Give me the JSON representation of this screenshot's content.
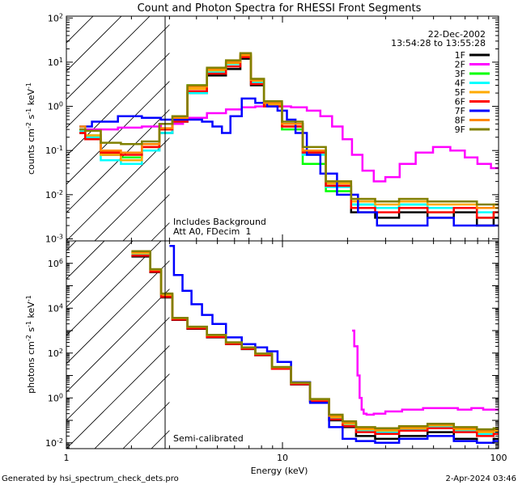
{
  "chart_data": [
    {
      "type": "line",
      "title": "Count and Photon Spectra for RHESSI Front Segments",
      "xlabel": "Energy (keV)",
      "ylabel": "counts cm-2 s-1 keV-1",
      "xscale": "log",
      "yscale": "log",
      "xlim": [
        1,
        100
      ],
      "ylim": [
        0.0009,
        110
      ],
      "yticks": [
        {
          "value": 0.001,
          "mant": "10",
          "exp": "-3"
        },
        {
          "value": 0.01,
          "mant": "10",
          "exp": "-2"
        },
        {
          "value": 0.1,
          "mant": "10",
          "exp": "-1"
        },
        {
          "value": 1,
          "mant": "10",
          "exp": "0"
        },
        {
          "value": 10,
          "mant": "10",
          "exp": "1"
        },
        {
          "value": 100,
          "mant": "10",
          "exp": "2"
        }
      ],
      "shaded_region_keV": [
        1,
        3
      ],
      "annotations": {
        "date": "22-Dec-2002",
        "time_range": "13:54:28 to 13:55:28",
        "note1": "Includes Background",
        "note2": "Att A0, FDecim  1"
      },
      "series": [
        {
          "name": "1F",
          "color": "#000000",
          "x": [
            1.15,
            1.3,
            1.6,
            2.0,
            2.5,
            2.9,
            3.3,
            4.0,
            5.0,
            6.0,
            6.8,
            7.5,
            9.0,
            11,
            14,
            18,
            24,
            30,
            40,
            55,
            70,
            90,
            100
          ],
          "y": [
            0.25,
            0.2,
            0.08,
            0.07,
            0.1,
            0.25,
            0.45,
            2.0,
            5.0,
            7.0,
            12,
            3.0,
            1.0,
            0.4,
            0.1,
            0.015,
            0.004,
            0.003,
            0.004,
            0.003,
            0.004,
            0.002,
            0.003
          ]
        },
        {
          "name": "2F",
          "color": "#ff00ff",
          "x": [
            1.15,
            1.5,
            2.0,
            2.5,
            3.0,
            4.0,
            5.0,
            6.0,
            7.0,
            8.0,
            10,
            12,
            14,
            16,
            18,
            20,
            22,
            25,
            28,
            32,
            38,
            45,
            55,
            65,
            75,
            85,
            100
          ],
          "y": [
            0.3,
            0.3,
            0.33,
            0.35,
            0.4,
            0.55,
            0.7,
            0.85,
            0.95,
            1.0,
            1.0,
            0.95,
            0.8,
            0.6,
            0.35,
            0.18,
            0.08,
            0.035,
            0.02,
            0.025,
            0.05,
            0.09,
            0.12,
            0.1,
            0.07,
            0.05,
            0.04
          ]
        },
        {
          "name": "3F",
          "color": "#00ff00",
          "x": [
            1.15,
            1.3,
            1.6,
            2.0,
            2.5,
            2.9,
            3.3,
            4.0,
            5.0,
            6.0,
            6.8,
            7.5,
            9.0,
            11,
            14,
            18,
            24,
            30,
            40,
            55,
            70,
            90,
            100
          ],
          "y": [
            0.3,
            0.22,
            0.09,
            0.07,
            0.12,
            0.3,
            0.5,
            3.0,
            7.0,
            10.0,
            14,
            4.0,
            1.0,
            0.3,
            0.05,
            0.012,
            0.006,
            0.005,
            0.006,
            0.004,
            0.005,
            0.003,
            0.004
          ]
        },
        {
          "name": "4F",
          "color": "#00ffff",
          "x": [
            1.15,
            1.3,
            1.6,
            2.0,
            2.5,
            2.9,
            3.3,
            4.0,
            5.0,
            6.0,
            6.8,
            7.5,
            9.0,
            11,
            14,
            18,
            24,
            30,
            40,
            55,
            70,
            90,
            100
          ],
          "y": [
            0.28,
            0.2,
            0.06,
            0.05,
            0.1,
            0.25,
            0.45,
            2.0,
            6.0,
            9.0,
            13,
            3.5,
            1.1,
            0.35,
            0.08,
            0.015,
            0.006,
            0.005,
            0.006,
            0.005,
            0.005,
            0.004,
            0.004
          ]
        },
        {
          "name": "5F",
          "color": "#ffaa00",
          "x": [
            1.15,
            1.3,
            1.6,
            2.0,
            2.5,
            2.9,
            3.3,
            4.0,
            5.0,
            6.0,
            6.8,
            7.5,
            9.0,
            11,
            14,
            18,
            24,
            30,
            40,
            55,
            70,
            90,
            100
          ],
          "y": [
            0.3,
            0.22,
            0.08,
            0.06,
            0.12,
            0.3,
            0.5,
            2.5,
            6.5,
            9.5,
            14,
            3.8,
            1.1,
            0.35,
            0.09,
            0.018,
            0.007,
            0.006,
            0.007,
            0.006,
            0.006,
            0.005,
            0.005
          ]
        },
        {
          "name": "6F",
          "color": "#ff0000",
          "x": [
            1.15,
            1.3,
            1.6,
            2.0,
            2.5,
            2.9,
            3.3,
            4.0,
            5.0,
            6.0,
            6.8,
            7.5,
            9.0,
            11,
            14,
            18,
            24,
            30,
            40,
            55,
            70,
            90,
            100
          ],
          "y": [
            0.25,
            0.18,
            0.09,
            0.08,
            0.12,
            0.3,
            0.45,
            2.2,
            5.5,
            8.0,
            13,
            3.2,
            1.0,
            0.35,
            0.09,
            0.016,
            0.005,
            0.004,
            0.005,
            0.004,
            0.005,
            0.003,
            0.004
          ]
        },
        {
          "name": "7F",
          "color": "#0000ff",
          "x": [
            1.15,
            1.5,
            2.0,
            2.5,
            3.0,
            3.5,
            4.0,
            4.5,
            5.0,
            5.5,
            6.0,
            7.0,
            8.0,
            9.0,
            10,
            11,
            12,
            14,
            16,
            20,
            25,
            30,
            40,
            55,
            70,
            90,
            100
          ],
          "y": [
            0.35,
            0.45,
            0.6,
            0.55,
            0.5,
            0.5,
            0.5,
            0.45,
            0.35,
            0.25,
            0.6,
            1.5,
            1.2,
            1.0,
            0.8,
            0.5,
            0.25,
            0.08,
            0.03,
            0.01,
            0.004,
            0.002,
            0.002,
            0.003,
            0.002,
            0.002,
            0.002
          ]
        },
        {
          "name": "8F",
          "color": "#ff8800",
          "x": [
            1.15,
            1.3,
            1.6,
            2.0,
            2.5,
            2.9,
            3.3,
            4.0,
            5.0,
            6.0,
            6.8,
            7.5,
            9.0,
            11,
            14,
            18,
            24,
            30,
            40,
            55,
            70,
            90,
            100
          ],
          "y": [
            0.35,
            0.28,
            0.1,
            0.09,
            0.14,
            0.32,
            0.55,
            2.8,
            7.0,
            10.0,
            15,
            4.0,
            1.2,
            0.4,
            0.1,
            0.02,
            0.008,
            0.007,
            0.008,
            0.007,
            0.007,
            0.005,
            0.006
          ]
        },
        {
          "name": "9F",
          "color": "#808000",
          "x": [
            1.15,
            1.3,
            1.6,
            2.0,
            2.5,
            2.9,
            3.3,
            4.0,
            5.0,
            6.0,
            6.8,
            7.5,
            9.0,
            11,
            14,
            18,
            24,
            30,
            40,
            55,
            70,
            90,
            100
          ],
          "y": [
            0.3,
            0.28,
            0.15,
            0.14,
            0.16,
            0.4,
            0.6,
            3.0,
            7.5,
            11,
            16,
            4.2,
            1.3,
            0.45,
            0.12,
            0.02,
            0.008,
            0.007,
            0.008,
            0.007,
            0.007,
            0.006,
            0.006
          ]
        }
      ]
    },
    {
      "type": "line",
      "title": "",
      "xlabel": "Energy (keV)",
      "ylabel": "photons cm-2 s-1 keV-1",
      "xscale": "log",
      "yscale": "log",
      "xlim": [
        1,
        100
      ],
      "ylim": [
        0.0055,
        10000000
      ],
      "yticks": [
        {
          "value": 0.01,
          "mant": "10",
          "exp": "-2"
        },
        {
          "value": 1,
          "mant": "10",
          "exp": "0"
        },
        {
          "value": 100,
          "mant": "10",
          "exp": "2"
        },
        {
          "value": 10000,
          "mant": "10",
          "exp": "4"
        },
        {
          "value": 1000000,
          "mant": "10",
          "exp": "6"
        }
      ],
      "xticks": [
        {
          "value": 1,
          "label": "1"
        },
        {
          "value": 10,
          "label": "10"
        },
        {
          "value": 100,
          "label": "100"
        }
      ],
      "shaded_region_keV": [
        1,
        3
      ],
      "annotations": {
        "note": "Semi-calibrated"
      },
      "series": [
        {
          "name": "1F",
          "color": "#000000",
          "x": [
            2.0,
            2.3,
            2.6,
            2.9,
            3.3,
            4.0,
            5.0,
            6.0,
            7.0,
            8.0,
            10,
            12,
            15,
            18,
            20,
            24,
            30,
            40,
            55,
            70,
            90,
            100
          ],
          "y": [
            2000000,
            2000000,
            400000,
            30000,
            3000,
            1200,
            500,
            250,
            150,
            80,
            20,
            4,
            0.7,
            0.1,
            0.05,
            0.02,
            0.015,
            0.02,
            0.03,
            0.015,
            0.01,
            0.015
          ]
        },
        {
          "name": "2F",
          "color": "#ff00ff",
          "x": [
            21.0,
            22.0,
            22.5,
            23.0,
            23.5,
            24.0,
            25.0,
            28.0,
            32.0,
            40.0,
            50,
            60,
            70,
            80,
            90,
            100
          ],
          "y": [
            1000,
            200,
            10,
            1,
            0.3,
            0.2,
            0.18,
            0.2,
            0.25,
            0.3,
            0.35,
            0.35,
            0.3,
            0.35,
            0.3,
            0.3
          ]
        },
        {
          "name": "3F",
          "color": "#00ff00",
          "x": [
            2.0,
            2.3,
            2.6,
            2.9,
            3.3,
            4.0,
            5.0,
            6.0,
            7.0,
            8.0,
            10,
            12,
            15,
            18,
            20,
            24,
            30,
            40,
            55,
            70,
            90,
            100
          ],
          "y": [
            3000000,
            3000000,
            500000,
            40000,
            3500,
            1400,
            600,
            280,
            170,
            90,
            22,
            4.5,
            0.8,
            0.15,
            0.07,
            0.04,
            0.03,
            0.04,
            0.06,
            0.04,
            0.03,
            0.04
          ]
        },
        {
          "name": "4F",
          "color": "#00ffff",
          "x": [
            2.0,
            2.3,
            2.6,
            2.9,
            3.3,
            4.0,
            5.0,
            6.0,
            7.0,
            8.0,
            10,
            12,
            15,
            18,
            20,
            24,
            30,
            40,
            55,
            70,
            90,
            100
          ],
          "y": [
            2500000,
            2500000,
            450000,
            35000,
            3300,
            1300,
            550,
            260,
            160,
            85,
            21,
            4.2,
            0.75,
            0.12,
            0.06,
            0.035,
            0.03,
            0.04,
            0.05,
            0.035,
            0.025,
            0.03
          ]
        },
        {
          "name": "5F",
          "color": "#ffaa00",
          "x": [
            2.0,
            2.3,
            2.6,
            2.9,
            3.3,
            4.0,
            5.0,
            6.0,
            7.0,
            8.0,
            10,
            12,
            15,
            18,
            20,
            24,
            30,
            40,
            55,
            70,
            90,
            100
          ],
          "y": [
            2800000,
            2800000,
            480000,
            38000,
            3400,
            1350,
            580,
            270,
            165,
            88,
            22,
            4.4,
            0.8,
            0.14,
            0.07,
            0.04,
            0.035,
            0.045,
            0.06,
            0.04,
            0.03,
            0.035
          ]
        },
        {
          "name": "6F",
          "color": "#ff0000",
          "x": [
            2.0,
            2.3,
            2.6,
            2.9,
            3.3,
            4.0,
            5.0,
            6.0,
            7.0,
            8.0,
            10,
            12,
            15,
            18,
            20,
            24,
            30,
            40,
            55,
            70,
            90,
            100
          ],
          "y": [
            2200000,
            2200000,
            420000,
            32000,
            3100,
            1250,
            520,
            255,
            155,
            82,
            20,
            4.1,
            0.72,
            0.11,
            0.055,
            0.03,
            0.025,
            0.035,
            0.045,
            0.03,
            0.02,
            0.025
          ]
        },
        {
          "name": "7F",
          "color": "#0000ff",
          "x": [
            3.0,
            3.3,
            3.6,
            4.0,
            4.5,
            5.0,
            6.0,
            7.0,
            8.0,
            9.0,
            10,
            12,
            15,
            18,
            20,
            24,
            30,
            40,
            55,
            70,
            90,
            100
          ],
          "y": [
            6000000,
            300000,
            60000,
            15000,
            5000,
            2000,
            500,
            250,
            180,
            120,
            40,
            5,
            0.6,
            0.05,
            0.015,
            0.012,
            0.01,
            0.015,
            0.02,
            0.012,
            0.01,
            0.012
          ]
        },
        {
          "name": "8F",
          "color": "#ff8800",
          "x": [
            2.0,
            2.3,
            2.6,
            2.9,
            3.3,
            4.0,
            5.0,
            6.0,
            7.0,
            8.0,
            10,
            12,
            15,
            18,
            20,
            24,
            30,
            40,
            55,
            70,
            90,
            100
          ],
          "y": [
            3200000,
            3200000,
            520000,
            42000,
            3600,
            1450,
            620,
            290,
            175,
            92,
            23,
            4.6,
            0.85,
            0.16,
            0.08,
            0.045,
            0.04,
            0.05,
            0.065,
            0.045,
            0.035,
            0.04
          ]
        },
        {
          "name": "9F",
          "color": "#808000",
          "x": [
            2.0,
            2.3,
            2.6,
            2.9,
            3.3,
            4.0,
            5.0,
            6.0,
            7.0,
            8.0,
            10,
            12,
            15,
            18,
            20,
            24,
            30,
            40,
            55,
            70,
            90,
            100
          ],
          "y": [
            3500000,
            3500000,
            550000,
            45000,
            3700,
            1500,
            650,
            300,
            180,
            95,
            24,
            4.8,
            0.9,
            0.18,
            0.09,
            0.05,
            0.045,
            0.055,
            0.07,
            0.05,
            0.04,
            0.045
          ]
        }
      ]
    }
  ],
  "footer": {
    "left": "Generated by hsi_spectrum_check_dets.pro",
    "right": "2-Apr-2024 03:46"
  }
}
